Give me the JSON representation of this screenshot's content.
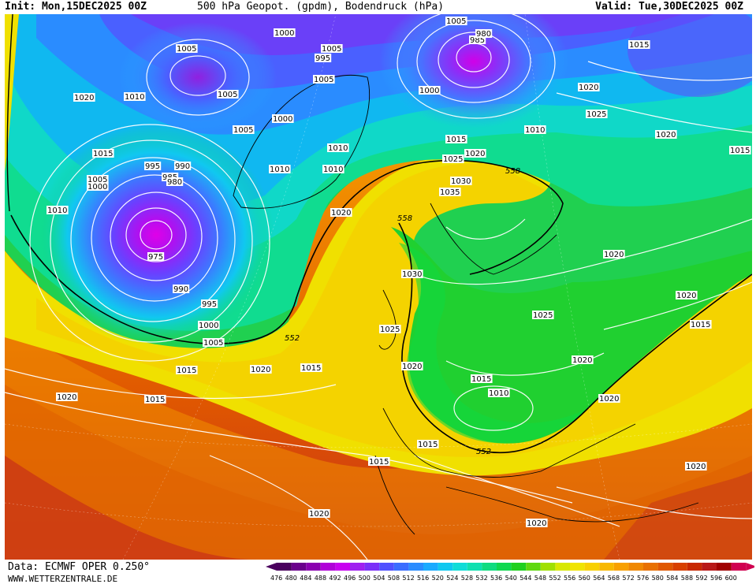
{
  "header": {
    "init": "Init: Mon,15DEC2025 00Z",
    "title": "500 hPa Geopot. (gpdm), Bodendruck (hPa)",
    "valid": "Valid: Tue,30DEC2025 00Z"
  },
  "footer": {
    "data_source": "Data: ECMWF OPER 0.250°",
    "website": "WWW.WETTERZENTRALE.DE"
  },
  "legend": {
    "ticks": [
      "476",
      "480",
      "484",
      "488",
      "492",
      "496",
      "500",
      "504",
      "508",
      "512",
      "516",
      "520",
      "524",
      "528",
      "532",
      "536",
      "540",
      "544",
      "548",
      "552",
      "556",
      "560",
      "564",
      "568",
      "572",
      "576",
      "580",
      "584",
      "588",
      "592",
      "596",
      "600"
    ],
    "colors": [
      "#4a005e",
      "#6a008c",
      "#8a00b0",
      "#b000d8",
      "#c800f0",
      "#a020f0",
      "#7a30f8",
      "#5050ff",
      "#3a6cff",
      "#2a8cff",
      "#1aaaff",
      "#10c8f0",
      "#10dcd8",
      "#10e0b0",
      "#10dc80",
      "#10d850",
      "#20d020",
      "#60d810",
      "#a0e000",
      "#d8e800",
      "#f0e400",
      "#f8d000",
      "#f8b800",
      "#f8a000",
      "#f08800",
      "#e87000",
      "#e05800",
      "#d84000",
      "#c82800",
      "#b81818",
      "#a00000",
      "#d00050"
    ]
  },
  "map": {
    "height_labels": [
      "558",
      "558",
      "552",
      "552"
    ],
    "pressure_labels": [
      "1000",
      "1005",
      "1005",
      "995",
      "985",
      "980",
      "995",
      "1015",
      "1005",
      "1020",
      "1010",
      "1005",
      "1000",
      "1005",
      "1020",
      "1005",
      "1010",
      "1025",
      "1000",
      "1015",
      "1010",
      "1020",
      "1015",
      "1005",
      "1000",
      "995",
      "990",
      "985",
      "980",
      "1015",
      "1025",
      "1020",
      "1010",
      "1010",
      "1035",
      "1030",
      "1010",
      "1020",
      "1020",
      "1030",
      "1020",
      "1015",
      "975",
      "990",
      "995",
      "1000",
      "1005",
      "1025",
      "1025",
      "1015",
      "1020",
      "1015",
      "1010",
      "1020",
      "1015",
      "1015",
      "1020",
      "1015",
      "1015",
      "1020",
      "1020",
      "1020",
      "1020",
      "1020"
    ]
  }
}
